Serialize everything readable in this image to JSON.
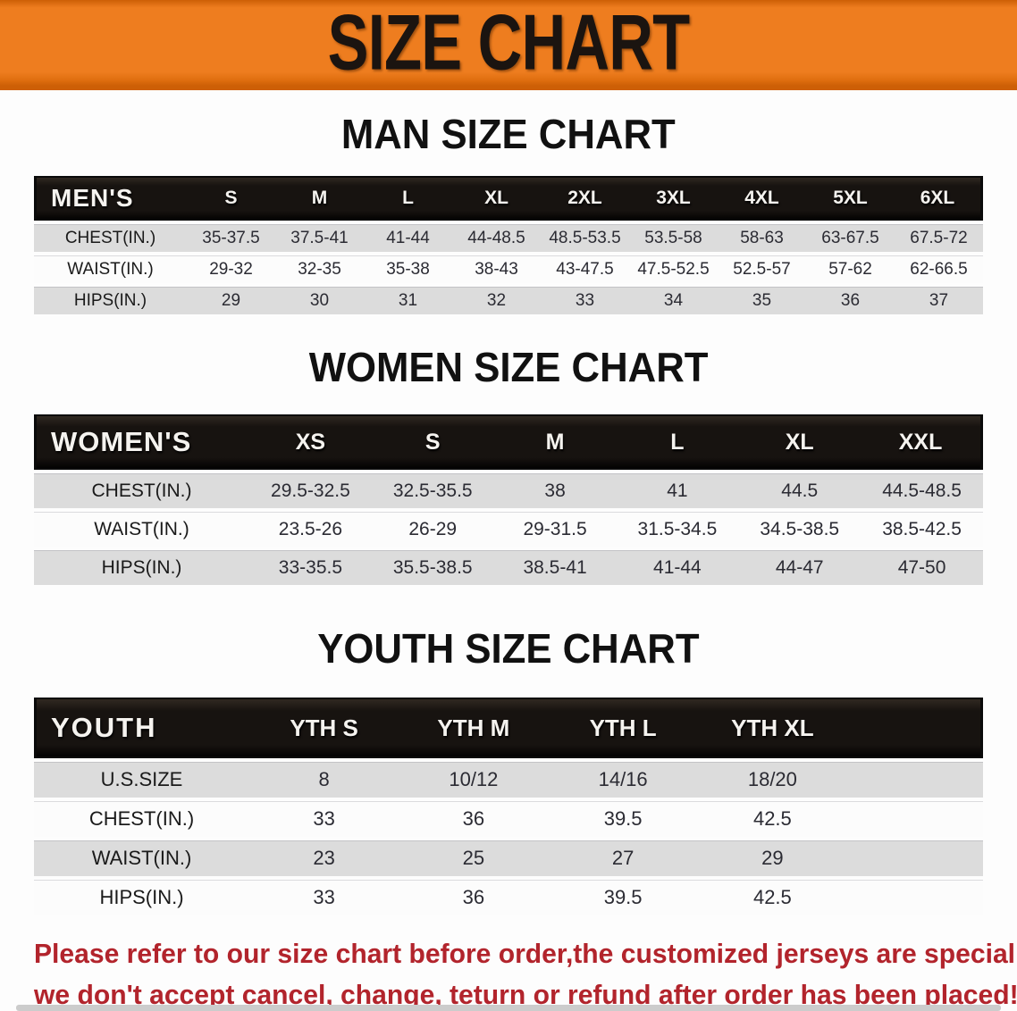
{
  "banner": {
    "title": "SIZE CHART"
  },
  "sections": [
    {
      "title": "MAN SIZE CHART",
      "header_label": "MEN'S",
      "columns": [
        "S",
        "M",
        "L",
        "XL",
        "2XL",
        "3XL",
        "4XL",
        "5XL",
        "6XL"
      ],
      "rows": [
        {
          "label": "CHEST(IN.)",
          "values": [
            "35-37.5",
            "37.5-41",
            "41-44",
            "44-48.5",
            "48.5-53.5",
            "53.5-58",
            "58-63",
            "63-67.5",
            "67.5-72"
          ]
        },
        {
          "label": "WAIST(IN.)",
          "values": [
            "29-32",
            "32-35",
            "35-38",
            "38-43",
            "43-47.5",
            "47.5-52.5",
            "52.5-57",
            "57-62",
            "62-66.5"
          ]
        },
        {
          "label": "HIPS(IN.)",
          "values": [
            "29",
            "30",
            "31",
            "32",
            "33",
            "34",
            "35",
            "36",
            "37"
          ]
        }
      ],
      "filler": false
    },
    {
      "title": "WOMEN SIZE CHART",
      "header_label": "WOMEN'S",
      "columns": [
        "XS",
        "S",
        "M",
        "L",
        "XL",
        "XXL"
      ],
      "rows": [
        {
          "label": "CHEST(IN.)",
          "values": [
            "29.5-32.5",
            "32.5-35.5",
            "38",
            "41",
            "44.5",
            "44.5-48.5"
          ]
        },
        {
          "label": "WAIST(IN.)",
          "values": [
            "23.5-26",
            "26-29",
            "29-31.5",
            "31.5-34.5",
            "34.5-38.5",
            "38.5-42.5"
          ]
        },
        {
          "label": "HIPS(IN.)",
          "values": [
            "33-35.5",
            "35.5-38.5",
            "38.5-41",
            "41-44",
            "44-47",
            "47-50"
          ]
        }
      ],
      "filler": false
    },
    {
      "title": "YOUTH SIZE CHART",
      "header_label": "YOUTH",
      "columns": [
        "YTH S",
        "YTH M",
        "YTH L",
        "YTH XL"
      ],
      "rows": [
        {
          "label": "U.S.SIZE",
          "values": [
            "8",
            "10/12",
            "14/16",
            "18/20"
          ]
        },
        {
          "label": "CHEST(IN.)",
          "values": [
            "33",
            "36",
            "39.5",
            "42.5"
          ]
        },
        {
          "label": "WAIST(IN.)",
          "values": [
            "23",
            "25",
            "27",
            "29"
          ]
        },
        {
          "label": "HIPS(IN.)",
          "values": [
            "33",
            "36",
            "39.5",
            "42.5"
          ]
        }
      ],
      "filler": true
    }
  ],
  "disclaimer": {
    "line1": "Please refer to our size chart before order,the customized jerseys are special products,",
    "line2": "we don't accept cancel, change, teturn or refund after order has been placed!"
  },
  "colors": {
    "banner_bg": "#ee7d1f",
    "banner_edge": "#cd5f06",
    "banner_text": "#1b1410",
    "header_bar": "#171310",
    "header_text": "#f5f3ef",
    "row_gray": "#dcdcdc",
    "row_white": "#fcfcfc",
    "cell_text": "#2b2b33",
    "disclaimer_red": "#b2242c",
    "bottom_strip": "#cccccc"
  }
}
